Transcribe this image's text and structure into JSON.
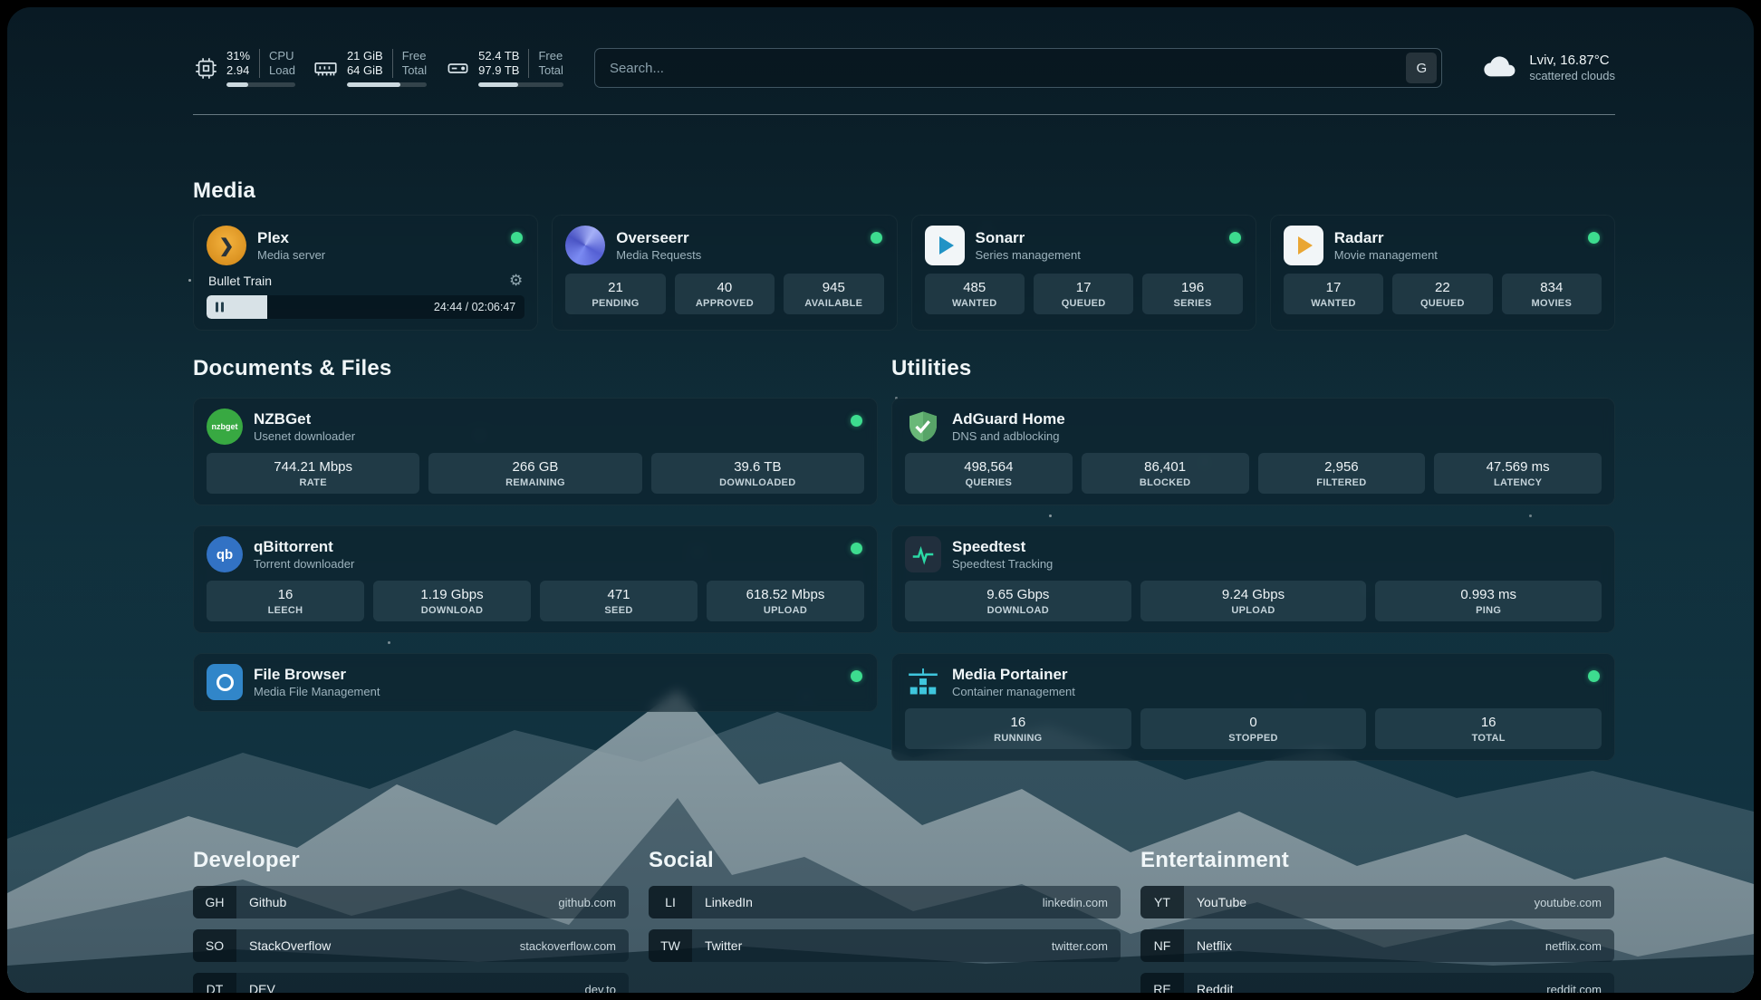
{
  "header": {
    "metrics": [
      {
        "icon": "cpu-icon",
        "value_top": "31%",
        "value_bottom": "2.94",
        "label_top": "CPU",
        "label_bottom": "Load",
        "percent": 31
      },
      {
        "icon": "memory-icon",
        "value_top": "21 GiB",
        "value_bottom": "64 GiB",
        "label_top": "Free",
        "label_bottom": "Total",
        "percent": 67
      },
      {
        "icon": "disk-icon",
        "value_top": "52.4 TB",
        "value_bottom": "97.9 TB",
        "label_top": "Free",
        "label_bottom": "Total",
        "percent": 47
      }
    ],
    "search": {
      "placeholder": "Search...",
      "button_label": "G"
    },
    "weather": {
      "icon": "cloud-icon",
      "location": "Lviv, 16.87°C",
      "condition": "scattered clouds"
    }
  },
  "colors": {
    "status_online": "#3ddc8f",
    "card_bg": "#0d232e"
  },
  "sections": {
    "media": {
      "title": "Media",
      "plex": {
        "name": "Plex",
        "subtitle": "Media server",
        "online": true,
        "now_playing": {
          "title": "Bullet Train",
          "time": "24:44 / 02:06:47",
          "progress_percent": 19
        }
      },
      "overseerr": {
        "name": "Overseerr",
        "subtitle": "Media Requests",
        "online": true,
        "stats": [
          {
            "value": "21",
            "label": "PENDING"
          },
          {
            "value": "40",
            "label": "APPROVED"
          },
          {
            "value": "945",
            "label": "AVAILABLE"
          }
        ]
      },
      "sonarr": {
        "name": "Sonarr",
        "subtitle": "Series management",
        "online": true,
        "stats": [
          {
            "value": "485",
            "label": "WANTED"
          },
          {
            "value": "17",
            "label": "QUEUED"
          },
          {
            "value": "196",
            "label": "SERIES"
          }
        ]
      },
      "radarr": {
        "name": "Radarr",
        "subtitle": "Movie management",
        "online": true,
        "stats": [
          {
            "value": "17",
            "label": "WANTED"
          },
          {
            "value": "22",
            "label": "QUEUED"
          },
          {
            "value": "834",
            "label": "MOVIES"
          }
        ]
      }
    },
    "documents": {
      "title": "Documents & Files",
      "nzbget": {
        "name": "NZBGet",
        "subtitle": "Usenet downloader",
        "online": true,
        "icon_text": "nzbget",
        "stats": [
          {
            "value": "744.21 Mbps",
            "label": "RATE"
          },
          {
            "value": "266 GB",
            "label": "REMAINING"
          },
          {
            "value": "39.6 TB",
            "label": "DOWNLOADED"
          }
        ]
      },
      "qbittorrent": {
        "name": "qBittorrent",
        "subtitle": "Torrent downloader",
        "online": true,
        "icon_text": "qb",
        "stats": [
          {
            "value": "16",
            "label": "LEECH"
          },
          {
            "value": "1.19 Gbps",
            "label": "DOWNLOAD"
          },
          {
            "value": "471",
            "label": "SEED"
          },
          {
            "value": "618.52 Mbps",
            "label": "UPLOAD"
          }
        ]
      },
      "filebrowser": {
        "name": "File Browser",
        "subtitle": "Media File Management",
        "online": true
      }
    },
    "utilities": {
      "title": "Utilities",
      "adguard": {
        "name": "AdGuard Home",
        "subtitle": "DNS and adblocking",
        "stats": [
          {
            "value": "498,564",
            "label": "QUERIES"
          },
          {
            "value": "86,401",
            "label": "BLOCKED"
          },
          {
            "value": "2,956",
            "label": "FILTERED"
          },
          {
            "value": "47.569 ms",
            "label": "LATENCY"
          }
        ]
      },
      "speedtest": {
        "name": "Speedtest",
        "subtitle": "Speedtest Tracking",
        "stats": [
          {
            "value": "9.65 Gbps",
            "label": "DOWNLOAD"
          },
          {
            "value": "9.24 Gbps",
            "label": "UPLOAD"
          },
          {
            "value": "0.993 ms",
            "label": "PING"
          }
        ]
      },
      "portainer": {
        "name": "Media Portainer",
        "subtitle": "Container management",
        "online": true,
        "stats": [
          {
            "value": "16",
            "label": "RUNNING"
          },
          {
            "value": "0",
            "label": "STOPPED"
          },
          {
            "value": "16",
            "label": "TOTAL"
          }
        ]
      }
    },
    "developer": {
      "title": "Developer",
      "links": [
        {
          "abbr": "GH",
          "name": "Github",
          "url": "github.com"
        },
        {
          "abbr": "SO",
          "name": "StackOverflow",
          "url": "stackoverflow.com"
        },
        {
          "abbr": "DT",
          "name": "DEV",
          "url": "dev.to"
        }
      ]
    },
    "social": {
      "title": "Social",
      "links": [
        {
          "abbr": "LI",
          "name": "LinkedIn",
          "url": "linkedin.com"
        },
        {
          "abbr": "TW",
          "name": "Twitter",
          "url": "twitter.com"
        }
      ]
    },
    "entertainment": {
      "title": "Entertainment",
      "links": [
        {
          "abbr": "YT",
          "name": "YouTube",
          "url": "youtube.com"
        },
        {
          "abbr": "NF",
          "name": "Netflix",
          "url": "netflix.com"
        },
        {
          "abbr": "RE",
          "name": "Reddit",
          "url": "reddit.com"
        }
      ]
    }
  }
}
